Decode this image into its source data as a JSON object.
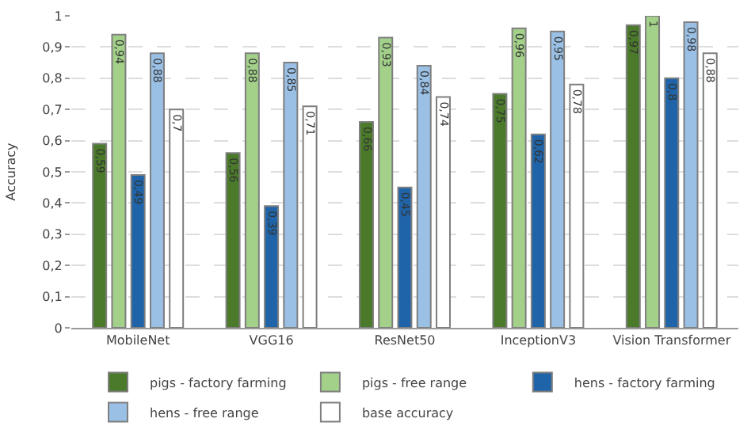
{
  "chart_data": {
    "type": "bar",
    "ylabel": "Accuracy",
    "categories": [
      "MobileNet",
      "VGG16",
      "ResNet50",
      "InceptionV3",
      "Vision Transformer"
    ],
    "series": [
      {
        "name": "pigs - factory farming",
        "color": "#4a7a2a",
        "values": [
          0.59,
          0.56,
          0.66,
          0.75,
          0.97
        ],
        "value_labels": [
          "0,59",
          "0,56",
          "0,66",
          "0,75",
          "0,97"
        ]
      },
      {
        "name": "pigs - free range",
        "color": "#a3d18a",
        "values": [
          0.94,
          0.88,
          0.93,
          0.96,
          1
        ],
        "value_labels": [
          "0,94",
          "0,88",
          "0,93",
          "0,96",
          "1"
        ]
      },
      {
        "name": "hens - factory farming",
        "color": "#1f64a8",
        "values": [
          0.49,
          0.39,
          0.45,
          0.62,
          0.8
        ],
        "value_labels": [
          "0,49",
          "0,39",
          "0,45",
          "0,62",
          "0,8"
        ]
      },
      {
        "name": "hens - free range",
        "color": "#9ac0e6",
        "values": [
          0.88,
          0.85,
          0.84,
          0.95,
          0.98
        ],
        "value_labels": [
          "0,88",
          "0,85",
          "0,84",
          "0,95",
          "0,98"
        ]
      },
      {
        "name": "base accuracy",
        "color": "#ffffff",
        "values": [
          0.7,
          0.71,
          0.74,
          0.78,
          0.88
        ],
        "value_labels": [
          "0,7",
          "0,71",
          "0,74",
          "0,78",
          "0,88"
        ]
      }
    ],
    "ylim": [
      0,
      1
    ],
    "yticks": [
      {
        "value": 0,
        "label": "0"
      },
      {
        "value": 0.1,
        "label": "0,1"
      },
      {
        "value": 0.2,
        "label": "0,2"
      },
      {
        "value": 0.3,
        "label": "0,3"
      },
      {
        "value": 0.4,
        "label": "0,4"
      },
      {
        "value": 0.5,
        "label": "0,5"
      },
      {
        "value": 0.6,
        "label": "0,6"
      },
      {
        "value": 0.7,
        "label": "0,7"
      },
      {
        "value": 0.8,
        "label": "0,8"
      },
      {
        "value": 0.9,
        "label": "0,9"
      },
      {
        "value": 1,
        "label": "1"
      }
    ],
    "grid": "y",
    "legend": "bottom"
  }
}
